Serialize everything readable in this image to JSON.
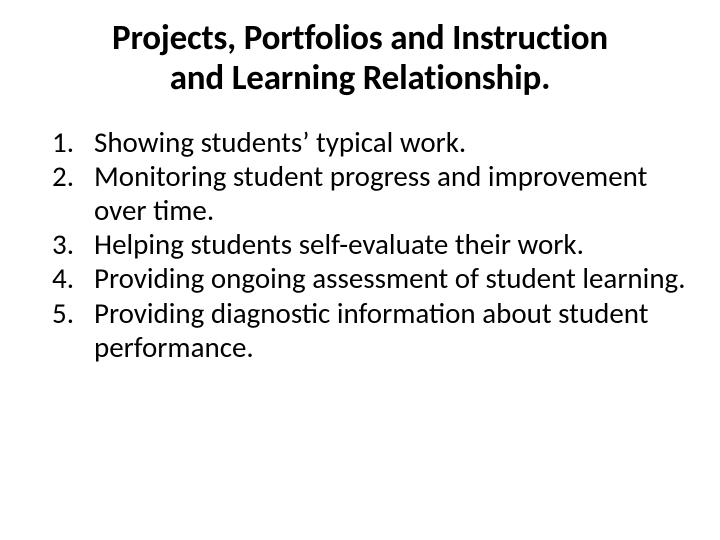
{
  "title_line1": "Projects, Portfolios and Instruction",
  "title_line2": "and Learning Relationship.",
  "title_fontsize": "35px",
  "body_fontsize": "29px",
  "text_color": "#000000",
  "background_color": "#ffffff",
  "items": [
    "Showing students’ typical work.",
    "Monitoring student progress and improvement over time.",
    "Helping students self-evaluate their work.",
    "Providing ongoing assessment of student learning.",
    "Providing diagnostic information about student performance."
  ]
}
